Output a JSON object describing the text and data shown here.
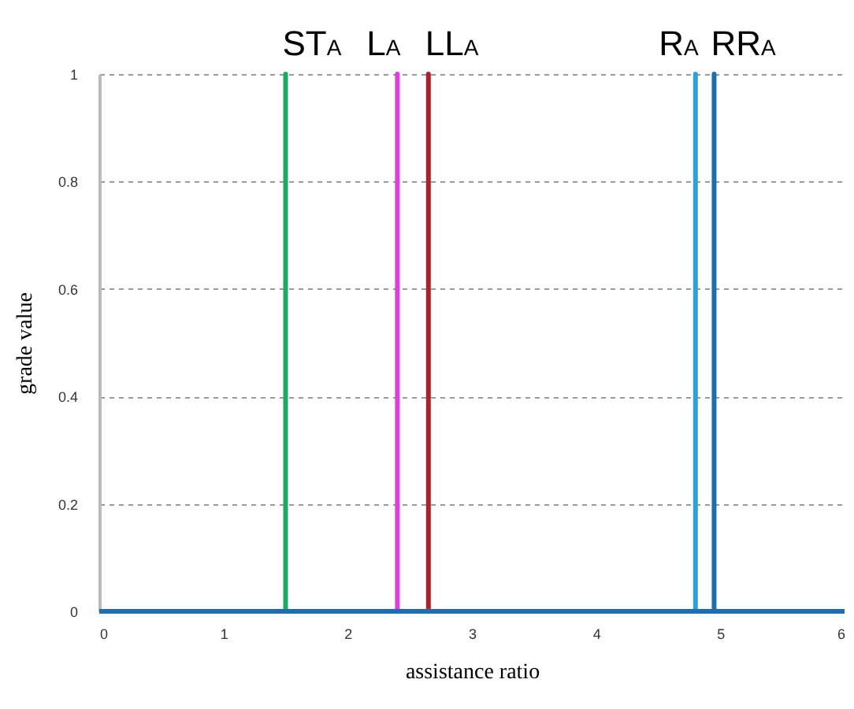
{
  "chart_data": {
    "type": "line",
    "xlabel": "assistance ratio",
    "ylabel": "grade value",
    "xlim": [
      0,
      6
    ],
    "xticks": [
      0,
      1,
      2,
      3,
      4,
      5,
      6
    ],
    "ylim": [
      0,
      1
    ],
    "yticks": [
      0,
      0.2,
      0.4,
      0.6,
      0.8,
      1
    ],
    "grid": "y",
    "marker": "none",
    "series": [
      {
        "name": "ST$_{A}$",
        "color": "#1fa860",
        "x": [
          0,
          1.5,
          1.5,
          1.5,
          6
        ],
        "values": [
          0,
          0,
          1,
          0,
          0
        ]
      },
      {
        "name": "L$_{A}$",
        "color": "#e03ce0",
        "x": [
          0,
          2.4,
          2.4,
          2.4,
          6
        ],
        "values": [
          0,
          0,
          1,
          0,
          0
        ]
      },
      {
        "name": "LL$_{A}$",
        "color": "#b0202a",
        "x": [
          0,
          2.65,
          2.65,
          2.65,
          6
        ],
        "values": [
          0,
          0,
          1,
          0,
          0
        ]
      },
      {
        "name": "R$_{A}$",
        "color": "#2fa0d8",
        "x": [
          0,
          4.8,
          4.8,
          4.8,
          6
        ],
        "values": [
          0,
          0,
          1,
          0,
          0
        ]
      },
      {
        "name": "RR$_{A}$",
        "color": "#1f6fb0",
        "x": [
          0,
          4.95,
          4.95,
          4.95,
          6
        ],
        "values": [
          0,
          0,
          1,
          0,
          0
        ]
      }
    ]
  }
}
